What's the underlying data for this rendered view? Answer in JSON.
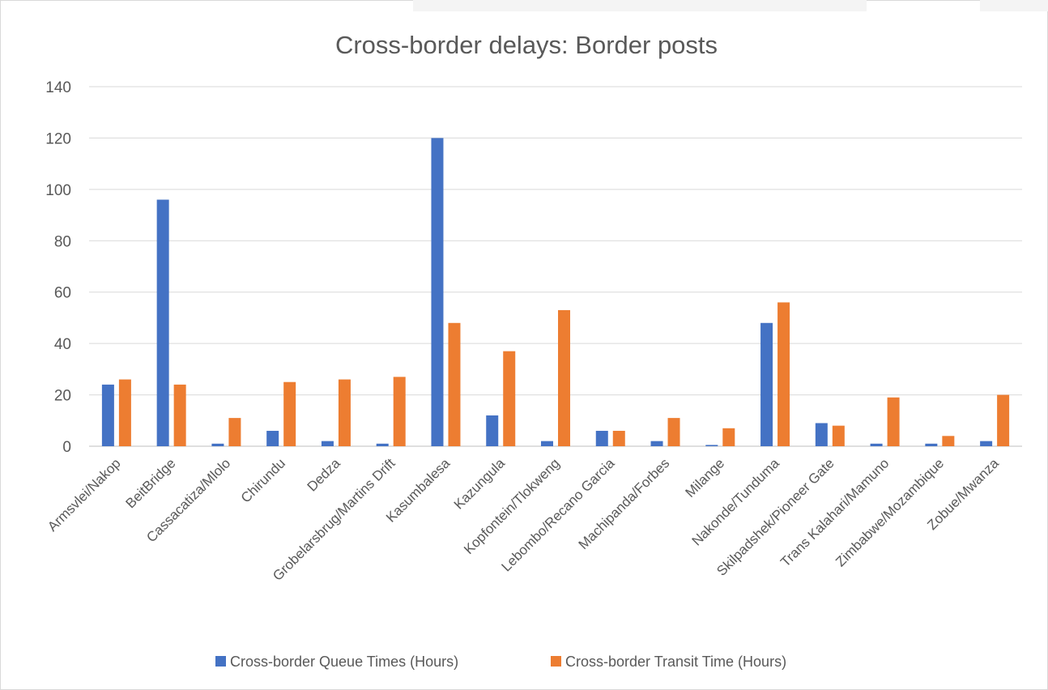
{
  "chart_data": {
    "type": "bar",
    "title": "Cross-border delays: Border posts",
    "xlabel": "",
    "ylabel": "",
    "ylim": [
      0,
      140
    ],
    "yticks": [
      0,
      20,
      40,
      60,
      80,
      100,
      120,
      140
    ],
    "grid": true,
    "legend_position": "bottom",
    "categories": [
      "Armsvlei/Nakop",
      "BeitBridge",
      "Cassacatiza/Mlolo",
      "Chirundu",
      "Dedza",
      "Grobelarsbrug/Martins Drift",
      "Kasumbalesa",
      "Kazungula",
      "Kopfontein/Tlokweng",
      "Lebombo/Recano Garcia",
      "Machipanda/Forbes",
      "Milange",
      "Nakonde/Tunduma",
      "Skilpadshek/Pioneer Gate",
      "Trans Kalahari/Mamuno",
      "Zimbabwe/Mozambique",
      "Zobue/Mwanza"
    ],
    "series": [
      {
        "name": "Cross-border Queue Times (Hours)",
        "color": "#4472C4",
        "values": [
          24,
          96,
          1,
          6,
          2,
          1,
          120,
          12,
          2,
          6,
          2,
          0.5,
          48,
          9,
          1,
          1,
          2
        ]
      },
      {
        "name": "Cross-border Transit Time (Hours)",
        "color": "#ED7D31",
        "values": [
          26,
          24,
          11,
          25,
          26,
          27,
          48,
          37,
          53,
          6,
          11,
          7,
          56,
          8,
          19,
          4,
          20
        ]
      }
    ]
  }
}
